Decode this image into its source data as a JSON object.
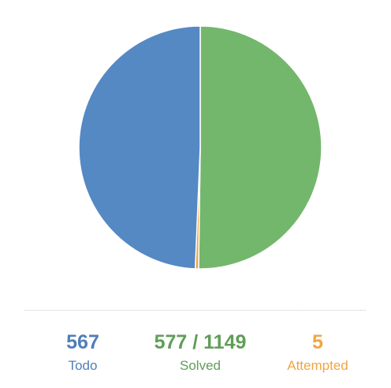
{
  "chart_data": {
    "type": "pie",
    "categories": [
      "Todo",
      "Solved",
      "Attempted"
    ],
    "values": [
      567,
      577,
      5
    ],
    "colors": [
      "#5589c4",
      "#73b76c",
      "#f0a542"
    ]
  },
  "stats": {
    "todo": {
      "value": "567",
      "label": "Todo",
      "color": "#4f7fb8"
    },
    "solved": {
      "value": "577 / 1149",
      "label": "Solved",
      "color": "#5f9e57"
    },
    "attempted": {
      "value": "5",
      "label": "Attempted",
      "color": "#f0a542"
    }
  }
}
